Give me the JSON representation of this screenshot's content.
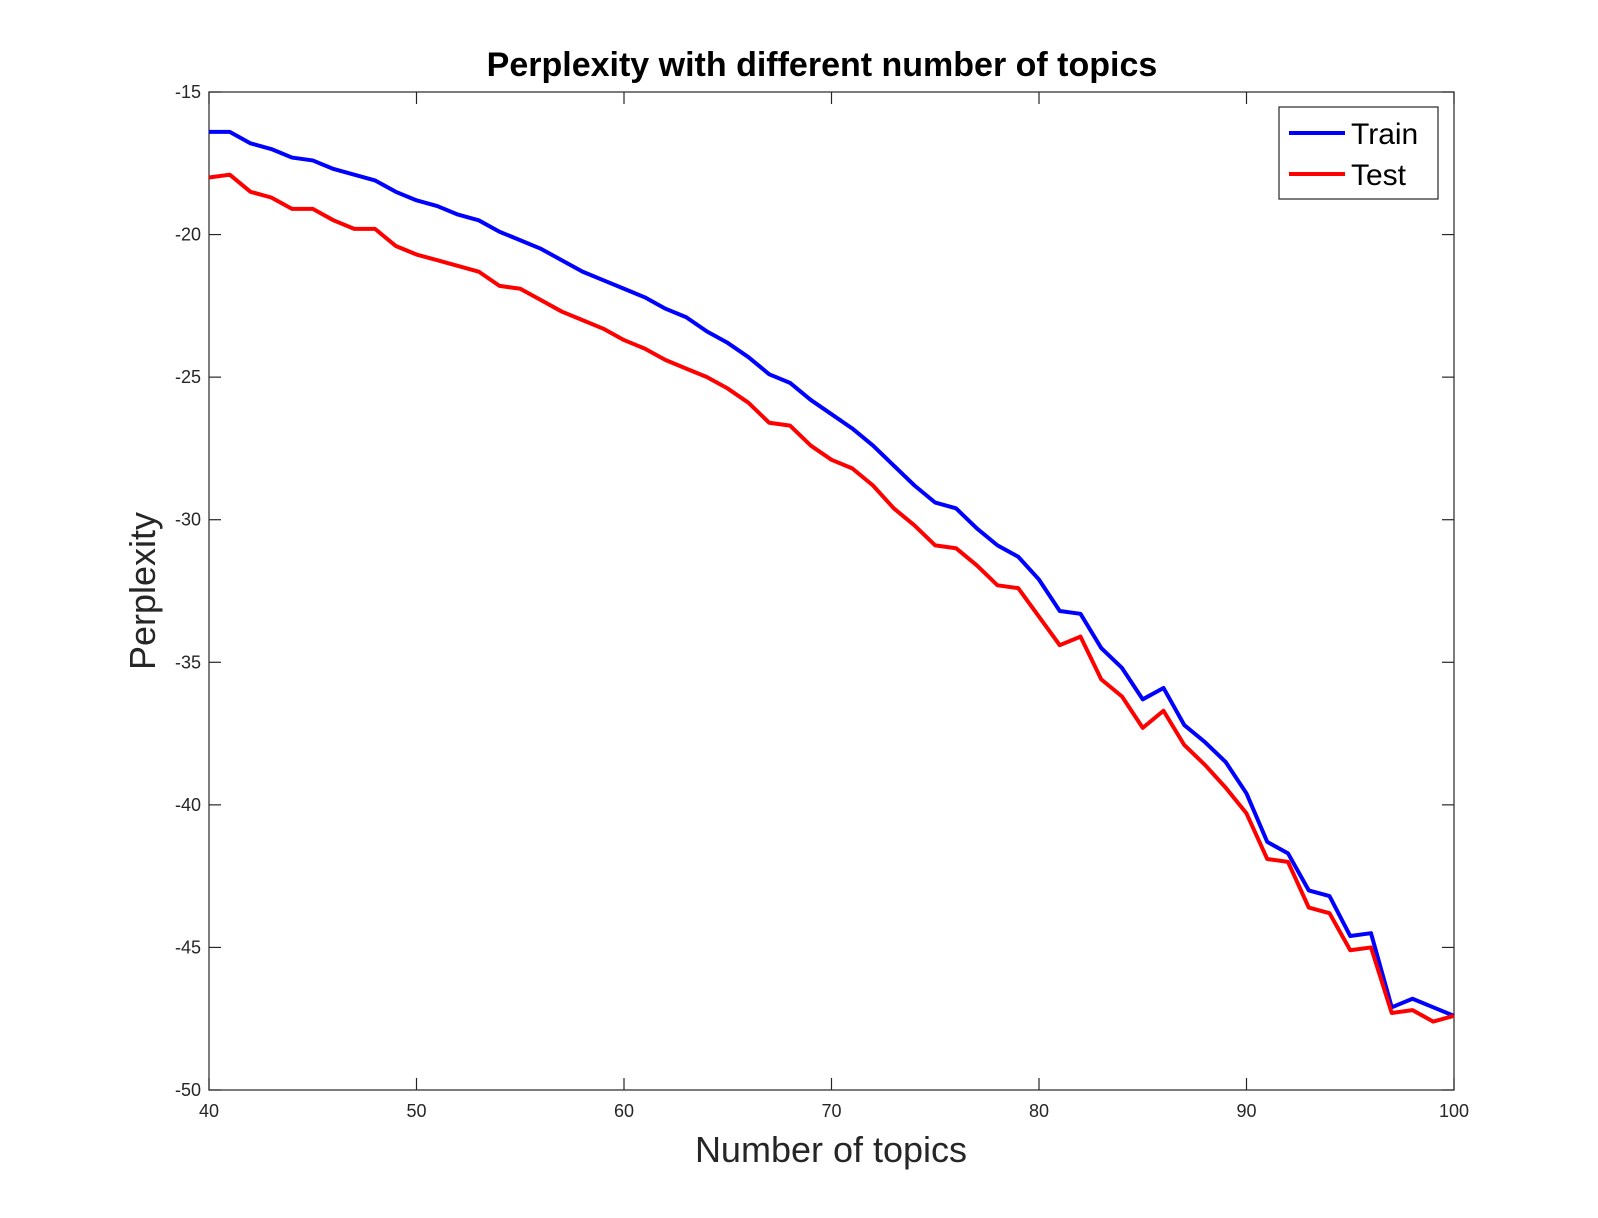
{
  "chart_data": {
    "type": "line",
    "title": "Perplexity with different number of topics",
    "xlabel": "Number of topics",
    "ylabel": "Perplexity",
    "xlim": [
      40,
      100
    ],
    "ylim": [
      -50,
      -15
    ],
    "xticks": [
      40,
      50,
      60,
      70,
      80,
      90,
      100
    ],
    "yticks": [
      -50,
      -45,
      -40,
      -35,
      -30,
      -25,
      -20,
      -15
    ],
    "grid": false,
    "legend_position": "top-right",
    "x": [
      40,
      41,
      42,
      43,
      44,
      45,
      46,
      47,
      48,
      49,
      50,
      51,
      52,
      53,
      54,
      55,
      56,
      57,
      58,
      59,
      60,
      61,
      62,
      63,
      64,
      65,
      66,
      67,
      68,
      69,
      70,
      71,
      72,
      73,
      74,
      75,
      76,
      77,
      78,
      79,
      80,
      81,
      82,
      83,
      84,
      85,
      86,
      87,
      88,
      89,
      90,
      91,
      92,
      93,
      94,
      95,
      96,
      97,
      98,
      99,
      100
    ],
    "series": [
      {
        "name": "Train",
        "color": "#0000ff",
        "values": [
          -16.4,
          -16.4,
          -16.8,
          -17.0,
          -17.3,
          -17.4,
          -17.7,
          -17.9,
          -18.1,
          -18.5,
          -18.8,
          -19.0,
          -19.3,
          -19.5,
          -19.9,
          -20.2,
          -20.5,
          -20.9,
          -21.3,
          -21.6,
          -21.9,
          -22.2,
          -22.6,
          -22.9,
          -23.4,
          -23.8,
          -24.3,
          -24.9,
          -25.2,
          -25.8,
          -26.3,
          -26.8,
          -27.4,
          -28.1,
          -28.8,
          -29.4,
          -29.6,
          -30.3,
          -30.9,
          -31.3,
          -32.1,
          -33.2,
          -33.3,
          -34.5,
          -35.2,
          -36.3,
          -35.9,
          -37.2,
          -37.8,
          -38.5,
          -39.6,
          -41.3,
          -41.7,
          -43.0,
          -43.2,
          -44.6,
          -44.5,
          -47.1,
          -46.8,
          -47.1,
          -47.4
        ]
      },
      {
        "name": "Test",
        "color": "#ff0000",
        "values": [
          -18.0,
          -17.9,
          -18.5,
          -18.7,
          -19.1,
          -19.1,
          -19.5,
          -19.8,
          -19.8,
          -20.4,
          -20.7,
          -20.9,
          -21.1,
          -21.3,
          -21.8,
          -21.9,
          -22.3,
          -22.7,
          -23.0,
          -23.3,
          -23.7,
          -24.0,
          -24.4,
          -24.7,
          -25.0,
          -25.4,
          -25.9,
          -26.6,
          -26.7,
          -27.4,
          -27.9,
          -28.2,
          -28.8,
          -29.6,
          -30.2,
          -30.9,
          -31.0,
          -31.6,
          -32.3,
          -32.4,
          -33.4,
          -34.4,
          -34.1,
          -35.6,
          -36.2,
          -37.3,
          -36.7,
          -37.9,
          -38.6,
          -39.4,
          -40.3,
          -41.9,
          -42.0,
          -43.6,
          -43.8,
          -45.1,
          -45.0,
          -47.3,
          -47.2,
          -47.6,
          -47.4
        ]
      }
    ]
  }
}
